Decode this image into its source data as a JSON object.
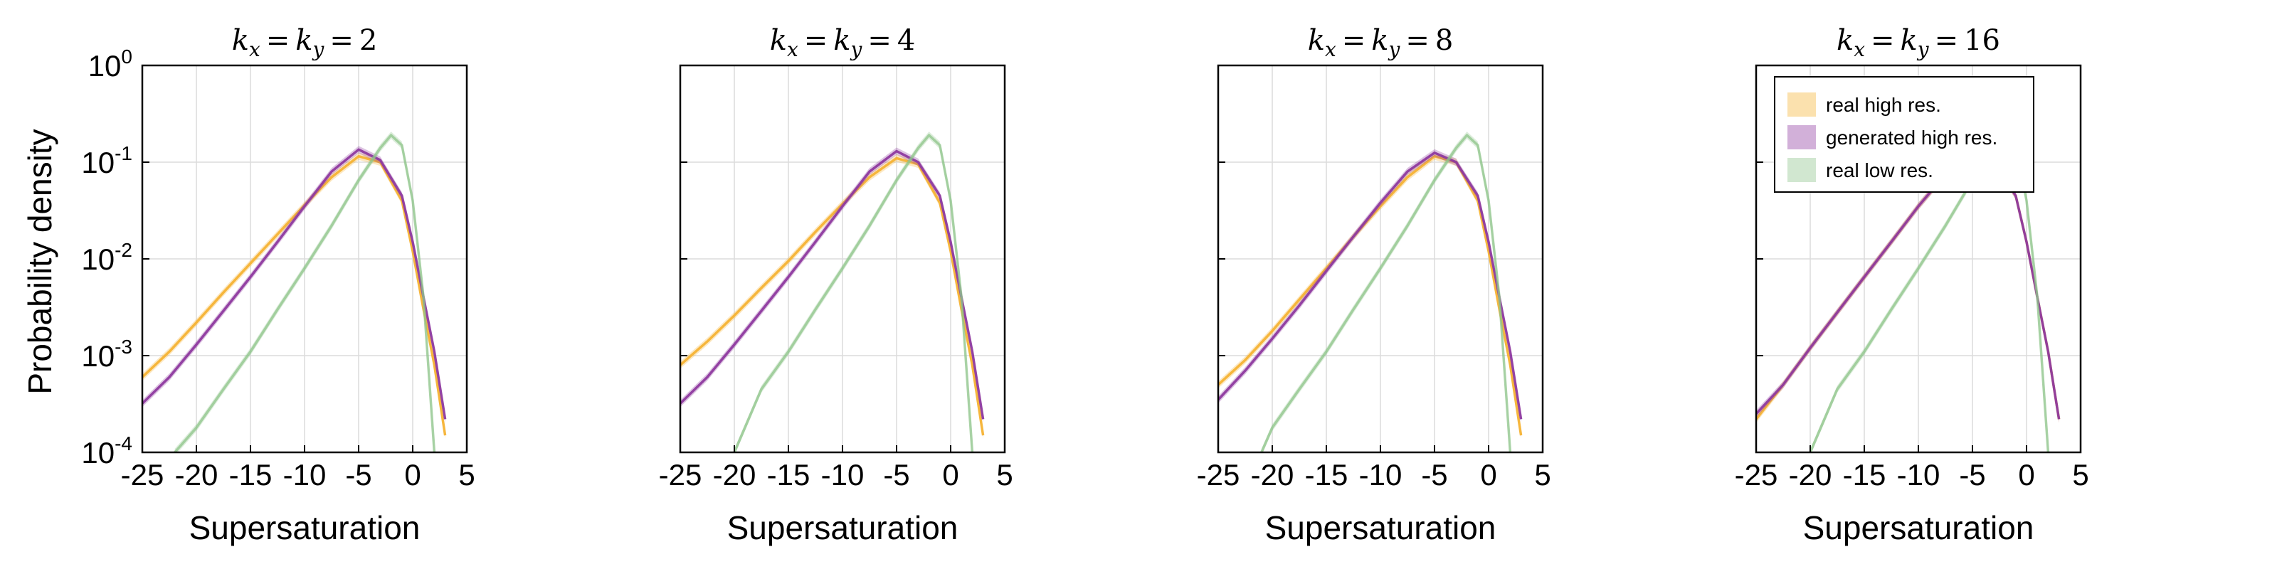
{
  "chart_data": {
    "type": "line",
    "ylabel": "Probability density",
    "xlabel": "Supersaturation",
    "yscale": "log",
    "xlim": [
      -25,
      5
    ],
    "ylim": [
      0.0001,
      1
    ],
    "xticks": [
      -25,
      -20,
      -15,
      -10,
      -5,
      0,
      5
    ],
    "xtick_labels": [
      "-25",
      "-20",
      "-15",
      "-10",
      "-5",
      "0",
      "5"
    ],
    "ytick_exponents": [
      "0",
      "-1",
      "-2",
      "-3",
      "-4"
    ],
    "ytick_base": "10",
    "grid": true,
    "legend": {
      "placement": "top-left of last panel",
      "entries": [
        "real high res.",
        "generated high res.",
        "real low res."
      ]
    },
    "colors": {
      "real high res.": "#f5b335",
      "generated high res.": "#8e3a9f",
      "real low res.": "#8dc48a"
    },
    "panels": [
      {
        "title": "k_x = k_y = 2",
        "title_parts": {
          "k1": "k",
          "s1": "x",
          "k2": "k",
          "s2": "y",
          "val": "2"
        },
        "series": [
          {
            "name": "real high res.",
            "x": [
              -25,
              -22.5,
              -20,
              -17.5,
              -15,
              -12.5,
              -10,
              -7.5,
              -5,
              -3,
              -1,
              0,
              1,
              2,
              3
            ],
            "y": [
              0.0006,
              0.0011,
              0.0022,
              0.0045,
              0.009,
              0.018,
              0.036,
              0.07,
              0.115,
              0.1,
              0.04,
              0.012,
              0.003,
              0.0008,
              0.00015
            ]
          },
          {
            "name": "generated high res.",
            "x": [
              -25,
              -22.5,
              -20,
              -17.5,
              -15,
              -12.5,
              -10,
              -7.5,
              -5,
              -3,
              -1,
              0,
              1,
              2,
              3
            ],
            "y": [
              0.00032,
              0.0006,
              0.0013,
              0.0029,
              0.0065,
              0.015,
              0.035,
              0.08,
              0.135,
              0.105,
              0.045,
              0.015,
              0.004,
              0.0011,
              0.00022
            ]
          },
          {
            "name": "real low res.",
            "x": [
              -22,
              -20,
              -17.5,
              -15,
              -12.5,
              -10,
              -7.5,
              -5,
              -3,
              -2,
              -1,
              0,
              1,
              2
            ],
            "y": [
              0.0001,
              0.00018,
              0.00045,
              0.0011,
              0.003,
              0.008,
              0.022,
              0.065,
              0.14,
              0.19,
              0.15,
              0.04,
              0.004,
              0.0001
            ]
          }
        ]
      },
      {
        "title": "k_x = k_y = 4",
        "title_parts": {
          "k1": "k",
          "s1": "x",
          "k2": "k",
          "s2": "y",
          "val": "4"
        },
        "series": [
          {
            "name": "real high res.",
            "x": [
              -25,
              -22.5,
              -20,
              -17.5,
              -15,
              -12.5,
              -10,
              -7.5,
              -5,
              -3,
              -1,
              0,
              1,
              2,
              3
            ],
            "y": [
              0.0008,
              0.0014,
              0.0026,
              0.005,
              0.0095,
              0.019,
              0.037,
              0.07,
              0.11,
              0.095,
              0.038,
              0.012,
              0.003,
              0.0008,
              0.00015
            ]
          },
          {
            "name": "generated high res.",
            "x": [
              -25,
              -22.5,
              -20,
              -17.5,
              -15,
              -12.5,
              -10,
              -7.5,
              -5,
              -3,
              -1,
              0,
              1,
              2,
              3
            ],
            "y": [
              0.00032,
              0.0006,
              0.0013,
              0.0029,
              0.0065,
              0.015,
              0.035,
              0.08,
              0.13,
              0.1,
              0.045,
              0.015,
              0.004,
              0.0011,
              0.00022
            ]
          },
          {
            "name": "real low res.",
            "x": [
              -20,
              -17.5,
              -15,
              -12.5,
              -10,
              -7.5,
              -5,
              -3,
              -2,
              -1,
              0,
              1,
              2
            ],
            "y": [
              0.0001,
              0.00045,
              0.0011,
              0.003,
              0.008,
              0.022,
              0.065,
              0.14,
              0.19,
              0.15,
              0.04,
              0.004,
              0.0001
            ]
          }
        ]
      },
      {
        "title": "k_x = k_y = 8",
        "title_parts": {
          "k1": "k",
          "s1": "x",
          "k2": "k",
          "s2": "y",
          "val": "8"
        },
        "series": [
          {
            "name": "real high res.",
            "x": [
              -25,
              -22.5,
              -20,
              -17.5,
              -15,
              -12.5,
              -10,
              -7.5,
              -5,
              -3,
              -1,
              0,
              1,
              2,
              3
            ],
            "y": [
              0.0005,
              0.0009,
              0.0018,
              0.0038,
              0.008,
              0.017,
              0.035,
              0.07,
              0.115,
              0.1,
              0.04,
              0.012,
              0.003,
              0.0008,
              0.00015
            ]
          },
          {
            "name": "generated high res.",
            "x": [
              -25,
              -22.5,
              -20,
              -17.5,
              -15,
              -12.5,
              -10,
              -7.5,
              -5,
              -3,
              -1,
              0,
              1,
              2,
              3
            ],
            "y": [
              0.00035,
              0.0007,
              0.0015,
              0.0033,
              0.0075,
              0.017,
              0.038,
              0.08,
              0.125,
              0.1,
              0.045,
              0.015,
              0.004,
              0.0011,
              0.00022
            ]
          },
          {
            "name": "real low res.",
            "x": [
              -21,
              -20,
              -17.5,
              -15,
              -12.5,
              -10,
              -7.5,
              -5,
              -3,
              -2,
              -1,
              0,
              1,
              2
            ],
            "y": [
              0.0001,
              0.00018,
              0.00045,
              0.0011,
              0.003,
              0.008,
              0.022,
              0.065,
              0.14,
              0.19,
              0.15,
              0.04,
              0.004,
              0.0001
            ]
          }
        ]
      },
      {
        "title": "k_x = k_y = 16",
        "title_parts": {
          "k1": "k",
          "s1": "x",
          "k2": "k",
          "s2": "y",
          "val": "16"
        },
        "series": [
          {
            "name": "real high res.",
            "x": [
              -25,
              -22.5,
              -20,
              -17.5,
              -15,
              -12.5,
              -10,
              -7.5,
              -5,
              -3,
              -1,
              0,
              1,
              2,
              3
            ],
            "y": [
              0.00022,
              0.0005,
              0.0012,
              0.0028,
              0.0065,
              0.015,
              0.035,
              0.075,
              0.125,
              0.1,
              0.045,
              0.015,
              0.004,
              0.0011,
              0.00022
            ]
          },
          {
            "name": "generated high res.",
            "x": [
              -25,
              -22.5,
              -20,
              -17.5,
              -15,
              -12.5,
              -10,
              -7.5,
              -5,
              -3,
              -1,
              0,
              1,
              2,
              3
            ],
            "y": [
              0.00025,
              0.0005,
              0.0012,
              0.0028,
              0.0065,
              0.015,
              0.035,
              0.075,
              0.125,
              0.1,
              0.045,
              0.015,
              0.004,
              0.0011,
              0.00022
            ]
          },
          {
            "name": "real low res.",
            "x": [
              -20,
              -17.5,
              -15,
              -12.5,
              -10,
              -7.5,
              -5,
              -3,
              -2,
              -1,
              0,
              1,
              2
            ],
            "y": [
              0.0001,
              0.00045,
              0.0011,
              0.003,
              0.008,
              0.022,
              0.065,
              0.14,
              0.19,
              0.15,
              0.04,
              0.004,
              0.0001
            ]
          }
        ]
      }
    ]
  }
}
